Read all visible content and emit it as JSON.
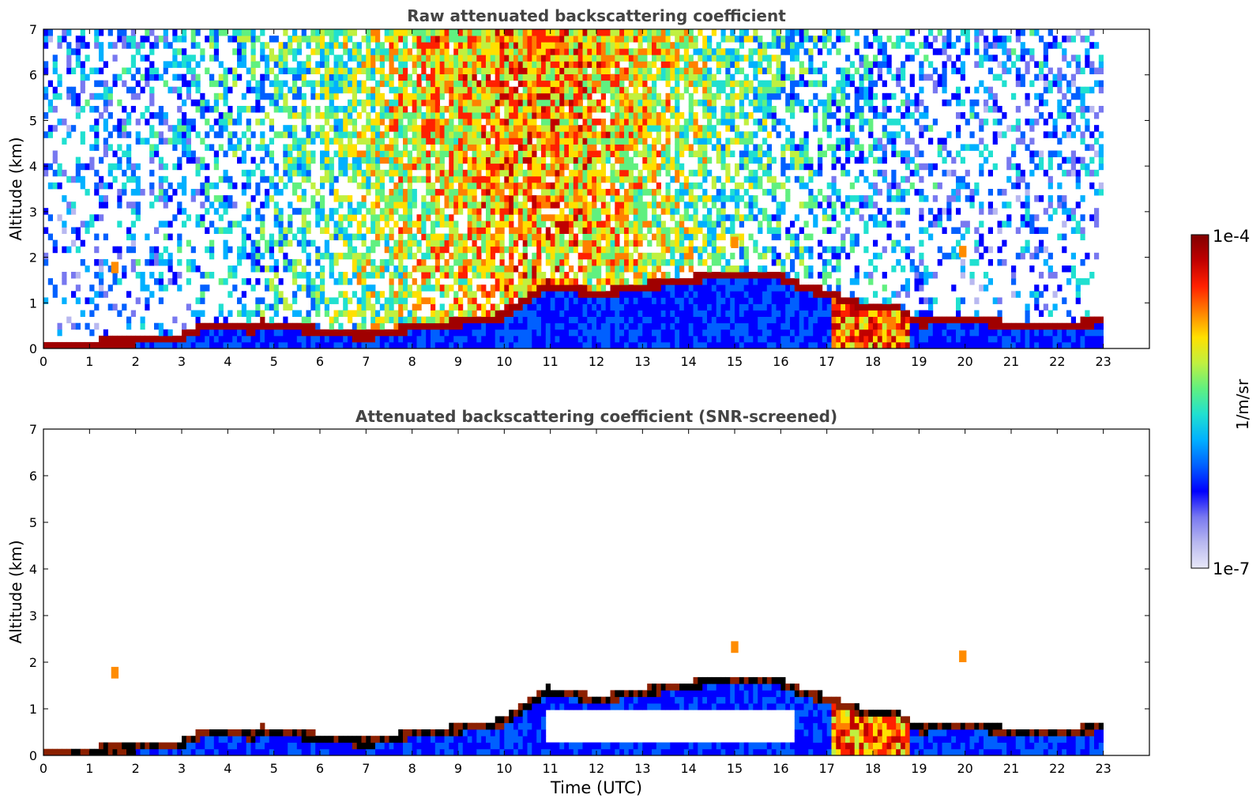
{
  "chart_data": [
    {
      "type": "heatmap",
      "title": "Raw attenuated backscattering coefficient",
      "xlabel": "",
      "ylabel": "Altitude (km)",
      "xlim": [
        0,
        24
      ],
      "ylim": [
        0,
        7
      ],
      "data_end_hour": 23,
      "xticks": [
        "0",
        "1",
        "2",
        "3",
        "4",
        "5",
        "6",
        "7",
        "8",
        "9",
        "10",
        "11",
        "12",
        "13",
        "14",
        "15",
        "16",
        "17",
        "18",
        "19",
        "20",
        "21",
        "22",
        "23"
      ],
      "yticks": [
        "0",
        "1",
        "2",
        "3",
        "4",
        "5",
        "6",
        "7"
      ],
      "boundary_layer_top_km": [
        [
          0,
          0.1
        ],
        [
          1,
          0.1
        ],
        [
          2,
          0.15
        ],
        [
          3,
          0.25
        ],
        [
          3.5,
          0.5
        ],
        [
          4,
          0.5
        ],
        [
          4.6,
          0.4
        ],
        [
          4.7,
          0.55
        ],
        [
          5,
          0.5
        ],
        [
          6,
          0.38
        ],
        [
          7,
          0.25
        ],
        [
          8,
          0.45
        ],
        [
          9,
          0.55
        ],
        [
          10,
          0.7
        ],
        [
          10.9,
          1.38
        ],
        [
          11.5,
          1.3
        ],
        [
          12,
          1.18
        ],
        [
          13,
          1.35
        ],
        [
          14,
          1.5
        ],
        [
          15,
          1.65
        ],
        [
          16,
          1.55
        ],
        [
          16.5,
          1.3
        ],
        [
          17,
          1.2
        ],
        [
          18,
          0.85
        ],
        [
          18.5,
          0.9
        ],
        [
          19,
          0.55
        ],
        [
          20,
          0.65
        ],
        [
          21,
          0.5
        ],
        [
          22,
          0.45
        ],
        [
          23,
          0.6
        ]
      ],
      "plume_feature": {
        "start_hour": 17.0,
        "end_hour": 18.7,
        "top_km": 1.2
      },
      "cloud_patches": [
        {
          "hour": 1.55,
          "alt_km": 1.75
        },
        {
          "hour": 15.0,
          "alt_km": 2.3
        },
        {
          "hour": 19.95,
          "alt_km": 2.1
        }
      ]
    },
    {
      "type": "heatmap",
      "title": "Attenuated backscattering coefficient (SNR-screened)",
      "xlabel": "Time (UTC)",
      "ylabel": "Altitude (km)",
      "xlim": [
        0,
        24
      ],
      "ylim": [
        0,
        7
      ],
      "data_end_hour": 23,
      "xticks": [
        "0",
        "1",
        "2",
        "3",
        "4",
        "5",
        "6",
        "7",
        "8",
        "9",
        "10",
        "11",
        "12",
        "13",
        "14",
        "15",
        "16",
        "17",
        "18",
        "19",
        "20",
        "21",
        "22",
        "23"
      ],
      "yticks": [
        "0",
        "1",
        "2",
        "3",
        "4",
        "5",
        "6",
        "7"
      ],
      "screened_gap": {
        "start_hour": 10.8,
        "end_hour": 16.2,
        "top_km": 1.0
      }
    }
  ],
  "colorbar": {
    "label": "1/m/sr",
    "max_label": "1e-4",
    "min_label": "1e-7",
    "stops": [
      "#e8e8f8",
      "#b8b8f0",
      "#7878f0",
      "#0000ff",
      "#0060ff",
      "#00b0ff",
      "#20e0d0",
      "#60f080",
      "#c0f040",
      "#ffe000",
      "#ff8000",
      "#ff2000",
      "#c00000",
      "#800000"
    ]
  }
}
